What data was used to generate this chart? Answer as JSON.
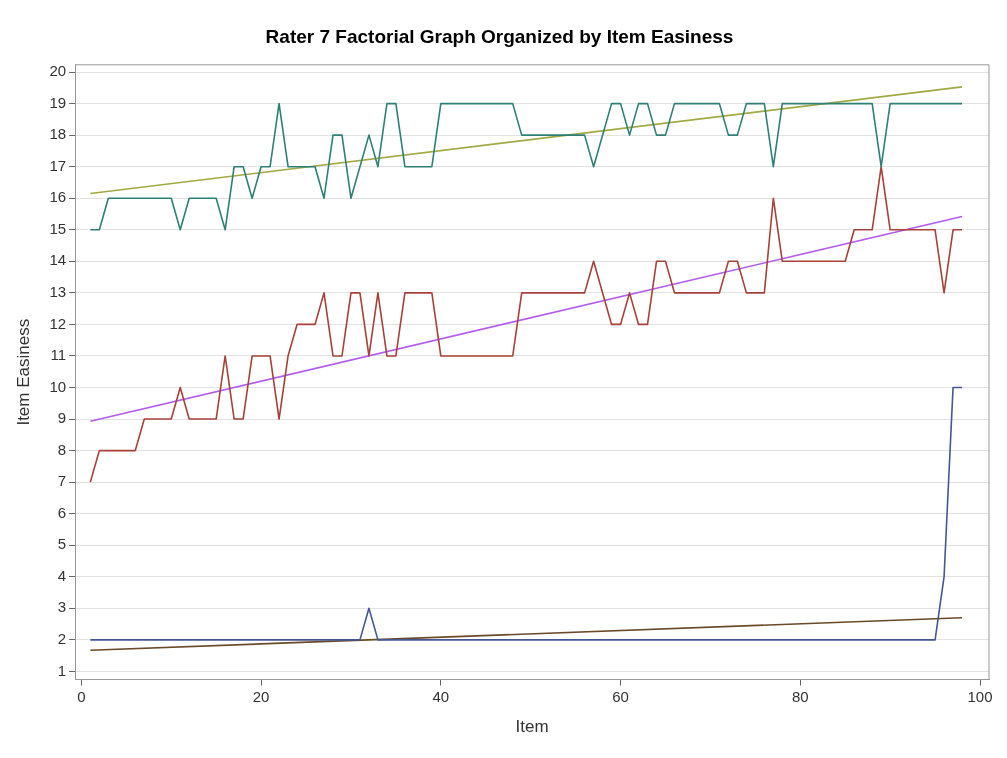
{
  "chart_data": {
    "type": "line",
    "title": "Rater 7 Factorial Graph Organized by Item Easiness",
    "xlabel": "Item",
    "ylabel": "Item Easiness",
    "xlim": [
      -0.7,
      101
    ],
    "xticks": [
      0,
      20,
      40,
      60,
      80,
      100
    ],
    "ylim": [
      0.74,
      20.23
    ],
    "yticks": [
      1,
      2,
      3,
      4,
      5,
      6,
      7,
      8,
      9,
      10,
      11,
      12,
      13,
      14,
      15,
      16,
      17,
      18,
      19,
      20
    ],
    "grid": "y",
    "legend": false,
    "marker": "none",
    "line_style": "solid",
    "series": [
      {
        "color": "#2e8076",
        "x": [
          1,
          2,
          3,
          10,
          11,
          12,
          15,
          16,
          17,
          18,
          19,
          20,
          21,
          22,
          23,
          26,
          27,
          28,
          29,
          30,
          32,
          33,
          34,
          35,
          36,
          39,
          40,
          48,
          49,
          56,
          57,
          59,
          60,
          61,
          62,
          63,
          64,
          65,
          66,
          71,
          72,
          73,
          74,
          76,
          77,
          78,
          88,
          89,
          90,
          98
        ],
        "values": [
          15,
          15,
          16,
          16,
          15,
          16,
          16,
          15,
          17,
          17,
          16,
          17,
          17,
          19,
          17,
          17,
          16,
          18,
          18,
          16,
          18,
          17,
          19,
          19,
          17,
          17,
          19,
          19,
          18,
          18,
          17,
          19,
          19,
          18,
          19,
          19,
          18,
          18,
          19,
          19,
          18,
          18,
          19,
          19,
          17,
          19,
          19,
          17,
          19,
          19
        ]
      },
      {
        "color": "#a1a942",
        "x": [
          1,
          98
        ],
        "values": [
          16.15,
          19.53
        ]
      },
      {
        "color": "#a7413a",
        "x": [
          1,
          2,
          6,
          7,
          10,
          11,
          12,
          15,
          16,
          17,
          18,
          19,
          21,
          22,
          23,
          24,
          26,
          27,
          28,
          29,
          30,
          31,
          32,
          33,
          34,
          35,
          36,
          39,
          40,
          48,
          49,
          56,
          57,
          59,
          60,
          61,
          62,
          63,
          64,
          65,
          66,
          71,
          72,
          73,
          74,
          76,
          77,
          78,
          85,
          86,
          88,
          89,
          90,
          95,
          96,
          97,
          98
        ],
        "values": [
          7,
          8,
          8,
          9,
          9,
          10,
          9,
          9,
          11,
          9,
          9,
          11,
          11,
          9,
          11,
          12,
          12,
          13,
          11,
          11,
          13,
          13,
          11,
          13,
          11,
          11,
          13,
          13,
          11,
          11,
          13,
          13,
          14,
          12,
          12,
          13,
          12,
          12,
          14,
          14,
          13,
          13,
          14,
          14,
          13,
          13,
          16,
          14,
          14,
          15,
          15,
          17,
          15,
          15,
          13,
          15,
          15
        ]
      },
      {
        "color": "#b35cf0",
        "x": [
          1,
          98
        ],
        "values": [
          8.93,
          15.42
        ]
      },
      {
        "color": "#445694",
        "x": [
          1,
          31,
          32,
          33,
          95,
          96,
          97,
          98
        ],
        "values": [
          2,
          2,
          3,
          2,
          2,
          4,
          10,
          10
        ]
      },
      {
        "color": "#6b4a2a",
        "x": [
          1,
          98
        ],
        "values": [
          1.67,
          2.7
        ]
      }
    ]
  }
}
